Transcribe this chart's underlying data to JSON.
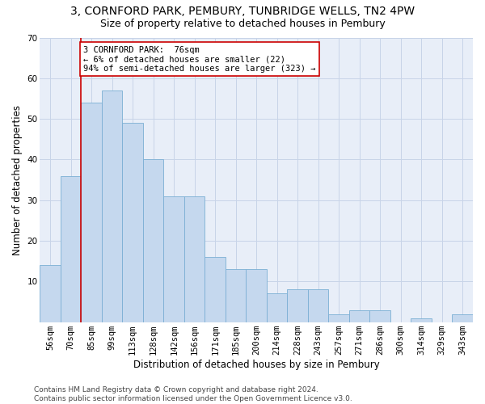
{
  "title": "3, CORNFORD PARK, PEMBURY, TUNBRIDGE WELLS, TN2 4PW",
  "subtitle": "Size of property relative to detached houses in Pembury",
  "xlabel": "Distribution of detached houses by size in Pembury",
  "ylabel": "Number of detached properties",
  "categories": [
    "56sqm",
    "70sqm",
    "85sqm",
    "99sqm",
    "113sqm",
    "128sqm",
    "142sqm",
    "156sqm",
    "171sqm",
    "185sqm",
    "200sqm",
    "214sqm",
    "228sqm",
    "243sqm",
    "257sqm",
    "271sqm",
    "286sqm",
    "300sqm",
    "314sqm",
    "329sqm",
    "343sqm"
  ],
  "values": [
    14,
    36,
    54,
    57,
    49,
    40,
    31,
    31,
    16,
    13,
    13,
    7,
    8,
    8,
    2,
    3,
    3,
    0,
    1,
    0,
    2
  ],
  "bar_color": "#c5d8ee",
  "bar_edge_color": "#7bafd4",
  "vline_color": "#cc0000",
  "vline_pos": 1.5,
  "annotation_text": "3 CORNFORD PARK:  76sqm\n← 6% of detached houses are smaller (22)\n94% of semi-detached houses are larger (323) →",
  "annotation_box_facecolor": "#ffffff",
  "annotation_box_edgecolor": "#cc0000",
  "ylim": [
    0,
    70
  ],
  "yticks": [
    0,
    10,
    20,
    30,
    40,
    50,
    60,
    70
  ],
  "grid_color": "#c8d4e8",
  "background_color": "#e8eef8",
  "footer": "Contains HM Land Registry data © Crown copyright and database right 2024.\nContains public sector information licensed under the Open Government Licence v3.0.",
  "title_fontsize": 10,
  "subtitle_fontsize": 9,
  "xlabel_fontsize": 8.5,
  "ylabel_fontsize": 8.5,
  "tick_fontsize": 7.5,
  "annotation_fontsize": 7.5,
  "footer_fontsize": 6.5
}
